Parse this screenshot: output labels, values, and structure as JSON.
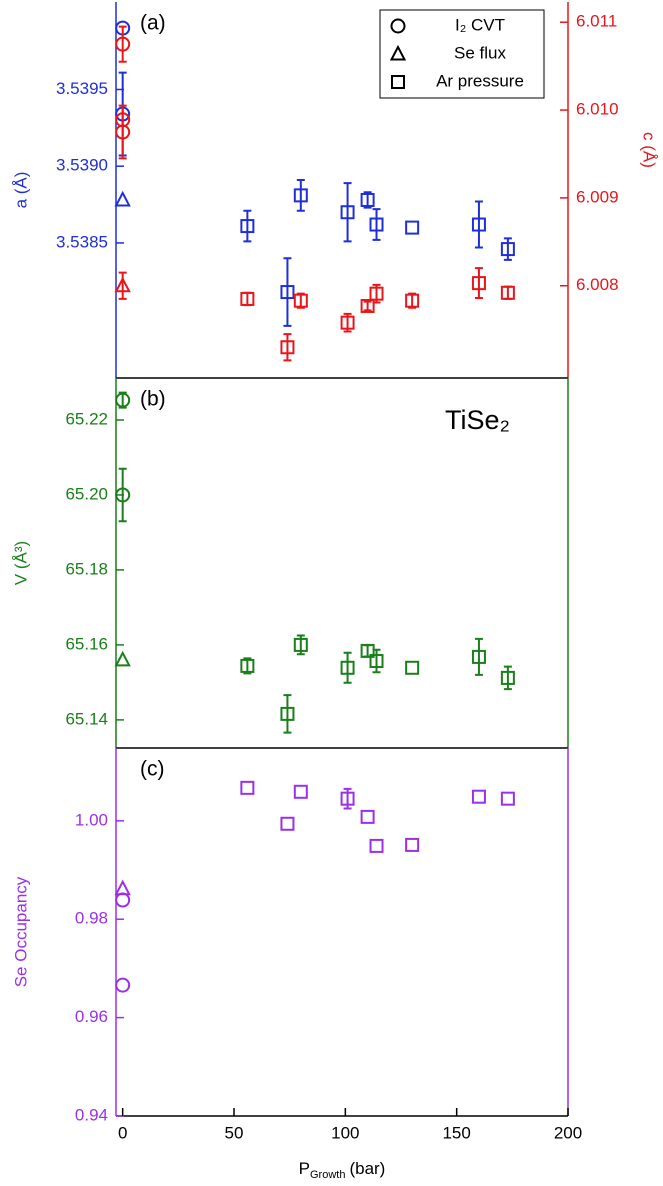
{
  "chart_data": [
    {
      "type": "scatter",
      "panel_label": "(a)",
      "ylabel": "a (Å)",
      "y2label": "c (Å)",
      "ycolor": "#1f2fd6",
      "y2color": "#e8161b",
      "xlim": [
        -3,
        200
      ],
      "ylim": [
        3.53762,
        3.54007
      ],
      "yticks": [
        3.5385,
        {
          "value": 3.539,
          "label": "3.5390"
        },
        3.5395
      ],
      "y2lim": [
        6.00695,
        6.01123
      ],
      "y2ticks": [
        6.008,
        6.009,
        {
          "value": 6.01,
          "label": "6.010"
        },
        6.011
      ],
      "legend_position": "upper right",
      "legend": [
        {
          "marker": "circle",
          "label": "I₂ CVT"
        },
        {
          "marker": "triangle",
          "label": "Se flux"
        },
        {
          "marker": "square",
          "label": "Ar pressure"
        }
      ],
      "series": [
        {
          "marker": "circle",
          "color": "#1f2fd6",
          "x": [
            0,
            0
          ],
          "values": [
            3.5399,
            3.53934
          ],
          "errors": [
            null,
            0.00027
          ]
        },
        {
          "marker": "triangle",
          "color": "#1f2fd6",
          "x": [
            0
          ],
          "values": [
            3.53878
          ],
          "errors": [
            null
          ]
        },
        {
          "marker": "square",
          "color": "#1f2fd6",
          "x": [
            56,
            74,
            80,
            101,
            110,
            114,
            130,
            160,
            173
          ],
          "values": [
            3.53861,
            3.53818,
            3.53881,
            3.5387,
            3.53878,
            3.53862,
            3.5386,
            3.53862,
            3.53846
          ],
          "errors": [
            0.0001,
            0.00022,
            0.0001,
            0.00019,
            5e-05,
            0.0001,
            null,
            0.00015,
            7e-05
          ]
        },
        {
          "marker": "circle",
          "color": "#e8161b",
          "axis": "y2",
          "x": [
            0,
            0,
            0
          ],
          "values": [
            6.01075,
            6.00989,
            6.00975
          ],
          "errors": [
            0.0002,
            null,
            0.0003
          ]
        },
        {
          "marker": "triangle",
          "color": "#e8161b",
          "axis": "y2",
          "x": [
            0
          ],
          "values": [
            6.008
          ],
          "errors": [
            0.00015
          ]
        },
        {
          "marker": "square",
          "color": "#e8161b",
          "axis": "y2",
          "x": [
            56,
            74,
            80,
            101,
            110,
            114,
            130,
            160,
            173
          ],
          "values": [
            6.00785,
            6.0073,
            6.00783,
            6.00758,
            6.00777,
            6.00791,
            6.00783,
            6.00803,
            6.00792
          ],
          "errors": [
            7e-05,
            0.00015,
            8e-05,
            0.0001,
            5e-05,
            0.0001,
            8e-05,
            0.00017,
            7e-05
          ]
        }
      ]
    },
    {
      "type": "scatter",
      "panel_label": "(b)",
      "annotation": "TiSe₂",
      "ylabel": "V (Å³)",
      "ycolor": "#1a7f1a",
      "xlim": [
        -3,
        200
      ],
      "ylim": [
        65.1325,
        65.2312
      ],
      "yticks": [
        65.14,
        65.16,
        65.18,
        {
          "value": 65.2,
          "label": "65.20"
        },
        65.22
      ],
      "series": [
        {
          "marker": "circle",
          "color": "#1a7f1a",
          "x": [
            0,
            0
          ],
          "values": [
            65.2253,
            65.2
          ],
          "errors": [
            0.002,
            0.007
          ]
        },
        {
          "marker": "triangle",
          "color": "#1a7f1a",
          "x": [
            0
          ],
          "values": [
            65.156
          ],
          "errors": [
            null
          ]
        },
        {
          "marker": "square",
          "color": "#1a7f1a",
          "x": [
            56,
            74,
            80,
            101,
            110,
            114,
            130,
            160,
            173
          ],
          "values": [
            65.1544,
            65.1416,
            65.16,
            65.1539,
            65.1584,
            65.1557,
            65.1539,
            65.1568,
            65.1512
          ],
          "errors": [
            0.002,
            0.005,
            0.0025,
            0.004,
            0.0015,
            0.003,
            null,
            0.0048,
            0.003
          ]
        }
      ]
    },
    {
      "type": "scatter",
      "panel_label": "(c)",
      "ylabel": "Se Occupancy",
      "ycolor": "#9b30e8",
      "xlim": [
        -3,
        200
      ],
      "xticks": [
        0,
        50,
        100,
        150,
        200
      ],
      "xlabel": {
        "main": "P",
        "sub": "Growth",
        "unit": "(bar)"
      },
      "ylim": [
        0.94,
        1.0148
      ],
      "yticks": [
        0.94,
        0.96,
        0.98,
        {
          "value": 1,
          "label": "1.00"
        }
      ],
      "series": [
        {
          "marker": "circle",
          "color": "#9b30e8",
          "x": [
            0,
            0
          ],
          "values": [
            0.9839,
            0.9666
          ],
          "errors": [
            null,
            null
          ]
        },
        {
          "marker": "triangle",
          "color": "#9b30e8",
          "x": [
            0
          ],
          "values": [
            0.9862
          ],
          "errors": [
            null
          ]
        },
        {
          "marker": "square",
          "color": "#9b30e8",
          "x": [
            56,
            74,
            80,
            101,
            110,
            114,
            130,
            160,
            173
          ],
          "values": [
            1.0067,
            0.9994,
            1.0059,
            1.0045,
            1.0008,
            0.9949,
            0.9951,
            1.0049,
            1.0045
          ],
          "errors": [
            null,
            null,
            null,
            0.002,
            null,
            null,
            null,
            null,
            null
          ]
        }
      ]
    }
  ]
}
